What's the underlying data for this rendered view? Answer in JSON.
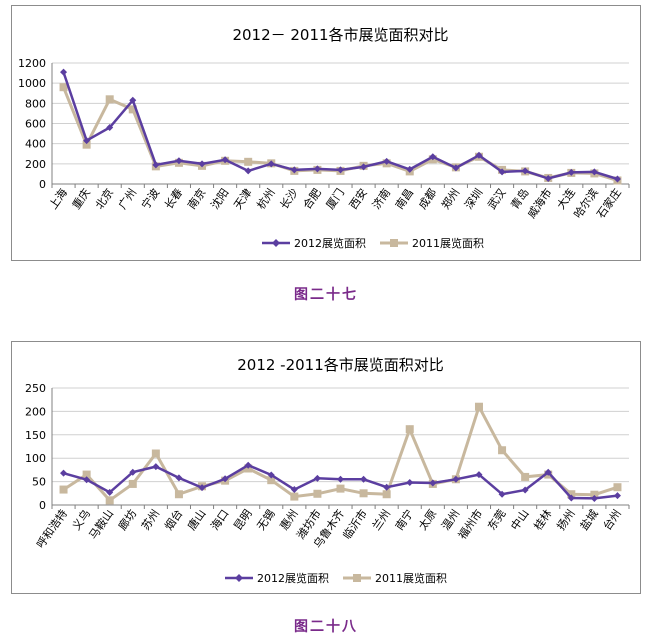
{
  "colors": {
    "s2012": "#5b3ea0",
    "s2011": "#c8b89e",
    "caption": "#7a2a8a",
    "grid": "#d0d0d0",
    "axis": "#808080"
  },
  "chart_data": [
    {
      "type": "line",
      "title": "2012－ 2011各市展览面积对比",
      "caption": "图二十七",
      "categories": [
        "上海",
        "重庆",
        "北京",
        "广州",
        "宁波",
        "长春",
        "南京",
        "沈阳",
        "天津",
        "杭州",
        "长沙",
        "合肥",
        "厦门",
        "西安",
        "济南",
        "南昌",
        "成都",
        "郑州",
        "深圳",
        "武汉",
        "青岛",
        "威海市",
        "大连",
        "哈尔滨",
        "石家庄"
      ],
      "ylim": [
        0,
        1200
      ],
      "yticks": [
        "0",
        "200",
        "400",
        "600",
        "800",
        "1000",
        "1200"
      ],
      "grid": true,
      "legend": "bottom",
      "series": [
        {
          "name": "2012展览面积",
          "values": [
            1110,
            430,
            560,
            830,
            190,
            230,
            200,
            240,
            130,
            200,
            140,
            150,
            140,
            170,
            225,
            145,
            270,
            160,
            285,
            120,
            130,
            55,
            115,
            120,
            50
          ]
        },
        {
          "name": "2011展览面积",
          "values": [
            960,
            390,
            840,
            740,
            175,
            210,
            180,
            230,
            220,
            205,
            130,
            140,
            130,
            180,
            205,
            125,
            245,
            165,
            270,
            140,
            125,
            60,
            110,
            105,
            35
          ]
        }
      ]
    },
    {
      "type": "line",
      "title": "2012 -2011各市展览面积对比",
      "caption": "图二十八",
      "categories": [
        "呼和浩特",
        "义乌",
        "马鞍山",
        "廊坊",
        "苏州",
        "烟台",
        "唐山",
        "海口",
        "昆明",
        "无锡",
        "惠州",
        "潍坊市",
        "乌鲁木齐",
        "临沂市",
        "兰州",
        "南宁",
        "太原",
        "温州",
        "福州市",
        "东莞",
        "中山",
        "桂林",
        "扬州",
        "盐城",
        "台州"
      ],
      "ylim": [
        0,
        250
      ],
      "yticks": [
        "0",
        "50",
        "100",
        "150",
        "200",
        "250"
      ],
      "grid": true,
      "legend": "bottom",
      "series": [
        {
          "name": "2012展览面积",
          "values": [
            68,
            54,
            27,
            70,
            82,
            58,
            37,
            56,
            85,
            64,
            33,
            57,
            55,
            55,
            38,
            48,
            47,
            55,
            65,
            23,
            32,
            70,
            15,
            14,
            20
          ]
        },
        {
          "name": "2011展览面积",
          "values": [
            33,
            65,
            10,
            45,
            110,
            23,
            40,
            52,
            78,
            53,
            18,
            24,
            35,
            25,
            23,
            162,
            45,
            55,
            210,
            117,
            60,
            65,
            23,
            22,
            38
          ]
        }
      ]
    }
  ]
}
